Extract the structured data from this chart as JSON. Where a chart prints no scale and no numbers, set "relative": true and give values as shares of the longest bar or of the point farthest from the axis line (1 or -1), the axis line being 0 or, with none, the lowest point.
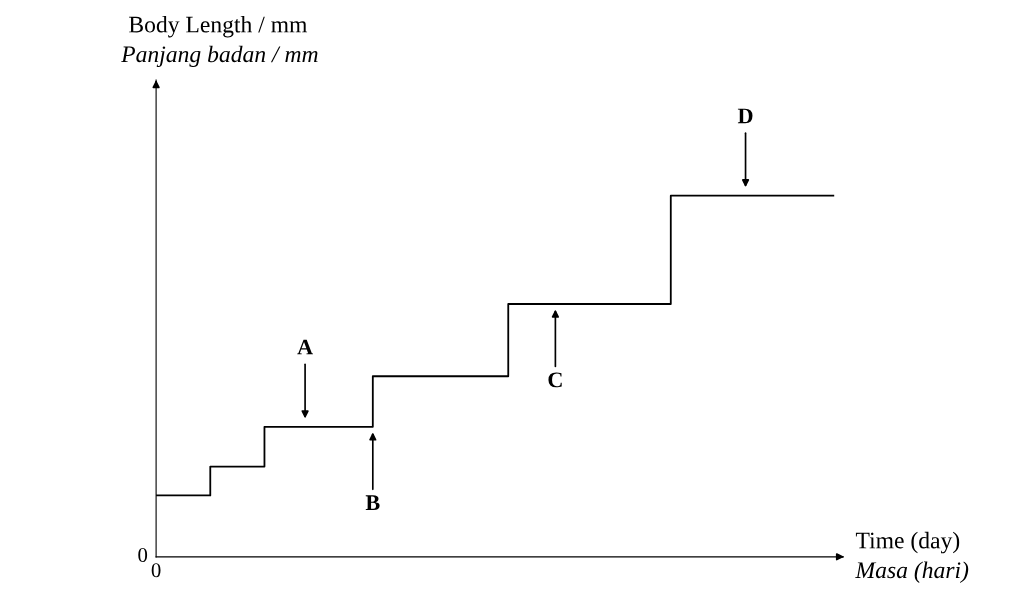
{
  "chart_data": {
    "type": "step",
    "relative": true,
    "xlabel": "Time (day)\nMasa (hari)",
    "categories": [
      null,
      null,
      null,
      null,
      null,
      null,
      null,
      null,
      null,
      null,
      null,
      null,
      null,
      null,
      null,
      null,
      null,
      null,
      null,
      null,
      null,
      null,
      null,
      null,
      null,
      null
    ],
    "series": [
      {
        "color": "#000000",
        "values": [
          0.17,
          0.17,
          0.25,
          0.25,
          0.36,
          0.36,
          0.36,
          0.36,
          0.5,
          0.5,
          0.5,
          0.5,
          0.5,
          0.7,
          0.7,
          0.7,
          0.7,
          0.7,
          0.7,
          1,
          1,
          1,
          1,
          1,
          1,
          1
        ]
      }
    ],
    "annotations": [
      "Body Length / mm",
      "Panjang badan / mm",
      "A",
      "B",
      "C",
      "D",
      "0",
      "0"
    ],
    "marker": "none",
    "line_style": "solid"
  }
}
